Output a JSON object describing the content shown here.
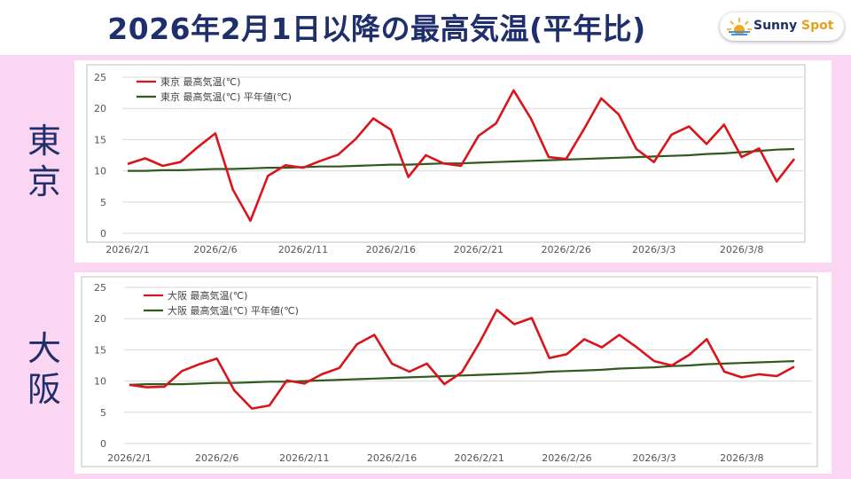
{
  "title": "2026年2月1日以降の最高気温(平年比)",
  "logo": {
    "word1": "Sunny",
    "word2": "Spot"
  },
  "colors": {
    "actual": "#d9151b",
    "normal": "#2e5a1e",
    "title": "#1f2f6b",
    "background": "#fbd6f3"
  },
  "chart_data": [
    {
      "type": "line",
      "city_label": [
        "東",
        "京"
      ],
      "ylim": [
        0,
        25
      ],
      "yticks": [
        "0",
        "5",
        "10",
        "15",
        "20",
        "25"
      ],
      "xtick_labels": [
        "2026/2/1",
        "2026/2/6",
        "2026/2/11",
        "2026/2/16",
        "2026/2/21",
        "2026/2/26",
        "2026/3/3",
        "2026/3/8"
      ],
      "grid": true,
      "legend_position": "top-left",
      "series": [
        {
          "name": "東京 最高気温(℃)",
          "values": [
            11.1,
            12.0,
            10.8,
            11.4,
            13.8,
            16.0,
            7.0,
            2.0,
            9.2,
            10.9,
            10.5,
            11.6,
            12.6,
            15.1,
            18.4,
            16.6,
            9.0,
            12.5,
            11.2,
            10.8,
            15.6,
            17.6,
            22.9,
            18.3,
            12.2,
            11.9,
            16.6,
            21.6,
            19.0,
            13.5,
            11.4,
            15.8,
            17.1,
            14.3,
            17.4,
            12.2,
            13.6,
            8.3,
            11.9
          ]
        },
        {
          "name": "東京 最高気温(℃) 平年値(℃)",
          "values": [
            10.0,
            10.0,
            10.1,
            10.1,
            10.2,
            10.3,
            10.3,
            10.4,
            10.5,
            10.5,
            10.6,
            10.7,
            10.7,
            10.8,
            10.9,
            11.0,
            11.0,
            11.1,
            11.2,
            11.2,
            11.3,
            11.4,
            11.5,
            11.6,
            11.7,
            11.8,
            11.9,
            12.0,
            12.1,
            12.2,
            12.3,
            12.4,
            12.5,
            12.7,
            12.8,
            13.0,
            13.2,
            13.4,
            13.5
          ]
        }
      ]
    },
    {
      "type": "line",
      "city_label": [
        "大",
        "阪"
      ],
      "ylim": [
        0,
        25
      ],
      "yticks": [
        "0",
        "5",
        "10",
        "15",
        "20",
        "25"
      ],
      "xtick_labels": [
        "2026/2/1",
        "2026/2/6",
        "2026/2/11",
        "2026/2/16",
        "2026/2/21",
        "2026/2/26",
        "2026/3/3",
        "2026/3/8"
      ],
      "grid": true,
      "legend_position": "top-left",
      "series": [
        {
          "name": "大阪 最高気温(℃)",
          "values": [
            9.4,
            9.0,
            9.1,
            11.6,
            12.7,
            13.6,
            8.5,
            5.6,
            6.1,
            10.1,
            9.6,
            11.1,
            12.1,
            15.9,
            17.4,
            12.8,
            11.5,
            12.8,
            9.5,
            11.4,
            16.1,
            21.4,
            19.1,
            20.1,
            13.7,
            14.3,
            16.7,
            15.4,
            17.4,
            15.4,
            13.2,
            12.5,
            14.2,
            16.7,
            11.5,
            10.6,
            11.1,
            10.8,
            12.3
          ]
        },
        {
          "name": "大阪 最高気温(℃) 平年値(℃)",
          "values": [
            9.4,
            9.5,
            9.5,
            9.5,
            9.6,
            9.7,
            9.7,
            9.8,
            9.9,
            9.9,
            10.0,
            10.1,
            10.2,
            10.3,
            10.4,
            10.5,
            10.6,
            10.7,
            10.8,
            10.9,
            11.0,
            11.1,
            11.2,
            11.3,
            11.5,
            11.6,
            11.7,
            11.8,
            12.0,
            12.1,
            12.2,
            12.4,
            12.5,
            12.7,
            12.8,
            12.9,
            13.0,
            13.1,
            13.2
          ]
        }
      ]
    }
  ]
}
